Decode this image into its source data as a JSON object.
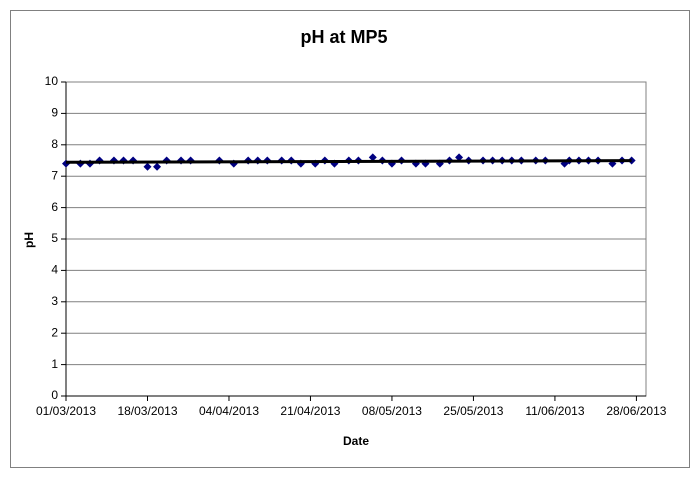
{
  "chart_data": {
    "type": "scatter",
    "title": "pH at MP5",
    "x_label": "Date",
    "y_label": "pH",
    "x": [
      "2013-03-01",
      "2013-03-04",
      "2013-03-06",
      "2013-03-08",
      "2013-03-11",
      "2013-03-13",
      "2013-03-15",
      "2013-03-18",
      "2013-03-20",
      "2013-03-22",
      "2013-03-25",
      "2013-03-27",
      "2013-04-02",
      "2013-04-05",
      "2013-04-08",
      "2013-04-10",
      "2013-04-12",
      "2013-04-15",
      "2013-04-17",
      "2013-04-19",
      "2013-04-22",
      "2013-04-24",
      "2013-04-26",
      "2013-04-29",
      "2013-05-01",
      "2013-05-04",
      "2013-05-06",
      "2013-05-08",
      "2013-05-10",
      "2013-05-13",
      "2013-05-15",
      "2013-05-18",
      "2013-05-20",
      "2013-05-22",
      "2013-05-24",
      "2013-05-27",
      "2013-05-29",
      "2013-05-31",
      "2013-06-02",
      "2013-06-04",
      "2013-06-07",
      "2013-06-09",
      "2013-06-13",
      "2013-06-14",
      "2013-06-16",
      "2013-06-18",
      "2013-06-20",
      "2013-06-23",
      "2013-06-25",
      "2013-06-27"
    ],
    "series": [
      {
        "color": "#000080",
        "values": [
          7.4,
          7.4,
          7.4,
          7.5,
          7.5,
          7.5,
          7.5,
          7.3,
          7.3,
          7.5,
          7.5,
          7.5,
          7.5,
          7.4,
          7.5,
          7.5,
          7.5,
          7.5,
          7.5,
          7.4,
          7.4,
          7.5,
          7.4,
          7.5,
          7.5,
          7.6,
          7.5,
          7.4,
          7.5,
          7.4,
          7.4,
          7.4,
          7.5,
          7.6,
          7.5,
          7.5,
          7.5,
          7.5,
          7.5,
          7.5,
          7.5,
          7.5,
          7.4,
          7.5,
          7.5,
          7.5,
          7.5,
          7.4,
          7.5,
          7.5
        ]
      }
    ],
    "trendline": {
      "color": "#000000"
    },
    "xlim": [
      "2013-03-01",
      "2013-06-30"
    ],
    "xticks": [
      {
        "value": "2013-03-01",
        "label": "01/03/2013"
      },
      {
        "value": "2013-03-18",
        "label": "18/03/2013"
      },
      {
        "value": "2013-04-04",
        "label": "04/04/2013"
      },
      {
        "value": "2013-04-21",
        "label": "21/04/2013"
      },
      {
        "value": "2013-05-08",
        "label": "08/05/2013"
      },
      {
        "value": "2013-05-25",
        "label": "25/05/2013"
      },
      {
        "value": "2013-06-11",
        "label": "11/06/2013"
      },
      {
        "value": "2013-06-28",
        "label": "28/06/2013"
      }
    ],
    "ylim": [
      0,
      10
    ],
    "yticks": [
      0,
      1,
      2,
      3,
      4,
      5,
      6,
      7,
      8,
      9,
      10
    ],
    "grid": true
  }
}
